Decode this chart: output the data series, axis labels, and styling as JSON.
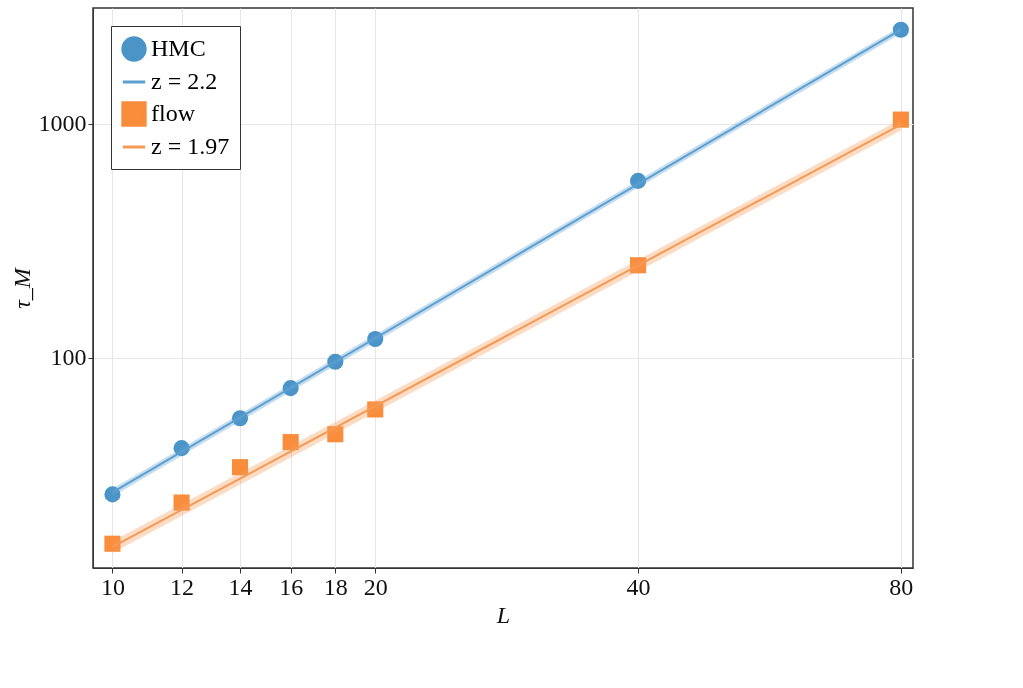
{
  "chart_data": {
    "type": "scatter",
    "xlabel": "L",
    "ylabel": "τ_M",
    "log": "xy",
    "grid": true,
    "legend": "top left",
    "xlim": [
      9.5,
      82.6
    ],
    "ylim": [
      12.6,
      3120
    ],
    "xticks": [
      10,
      12,
      14,
      16,
      18,
      20,
      40,
      80
    ],
    "yticks": [
      100,
      1000
    ],
    "series": [
      {
        "name": "HMC",
        "marker": "circle",
        "color": "#4a94c8",
        "x": [
          10,
          12,
          14,
          16,
          18,
          20,
          40,
          80
        ],
        "values": [
          26,
          41,
          55,
          74,
          96,
          120,
          569,
          2520
        ]
      },
      {
        "name": "z = 2.2",
        "type": "line",
        "color": "#5b9fd0",
        "x": [
          10,
          80
        ],
        "values": [
          26.5,
          2520
        ],
        "lower": [
          25.5,
          2430
        ],
        "upper": [
          27.5,
          2610
        ]
      },
      {
        "name": "flow",
        "marker": "square",
        "color": "#f98d3c",
        "x": [
          10,
          12,
          14,
          16,
          18,
          20,
          40,
          80
        ],
        "values": [
          16,
          24,
          34,
          43.5,
          47,
          60,
          248,
          1040
        ]
      },
      {
        "name": "z = 1.97",
        "type": "line",
        "color": "#f59a55",
        "x": [
          10,
          80
        ],
        "values": [
          15.5,
          990
        ],
        "lower": [
          14.6,
          935
        ],
        "upper": [
          16.4,
          1045
        ]
      }
    ]
  }
}
